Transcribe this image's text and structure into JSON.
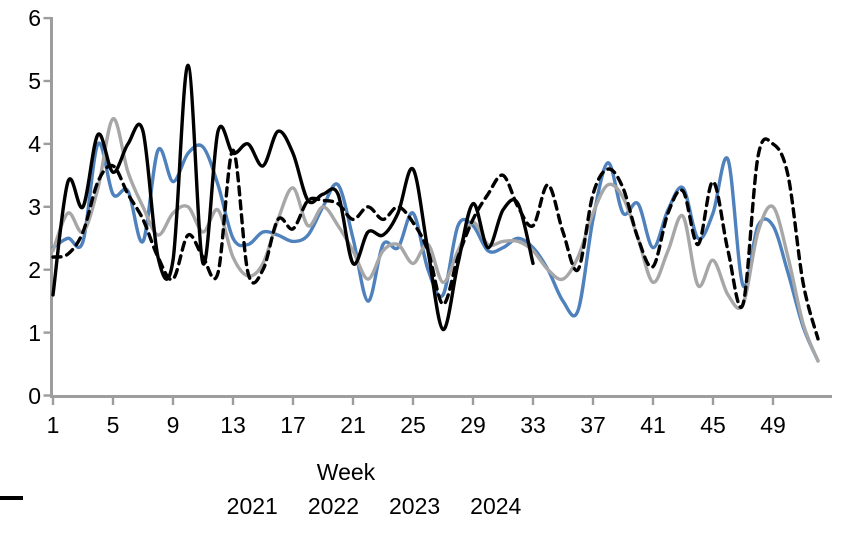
{
  "colors": {
    "axis": "#9D9D9D",
    "text": "#000000",
    "background": "#FFFFFF",
    "series_2021": "#4F81BD",
    "series_2022": "#A7A7A7",
    "series_2023": "#000000",
    "series_2024": "#000000"
  },
  "chart_data": {
    "type": "line",
    "title": "",
    "xlabel": "Week",
    "ylabel": "",
    "xlim": [
      1,
      52
    ],
    "ylim": [
      0,
      6
    ],
    "x_ticks": [
      1,
      5,
      9,
      13,
      17,
      21,
      25,
      29,
      33,
      37,
      41,
      45,
      49
    ],
    "y_ticks": [
      0,
      1,
      2,
      3,
      4,
      5,
      6
    ],
    "grid": false,
    "legend_position": "bottom",
    "series": [
      {
        "name": "2021",
        "color": "#4F81BD",
        "style": "solid",
        "start_week": 1,
        "values": [
          2.35,
          2.5,
          2.45,
          4.0,
          3.2,
          3.25,
          2.45,
          3.9,
          3.4,
          3.85,
          3.95,
          3.35,
          2.5,
          2.4,
          2.6,
          2.55,
          2.45,
          2.55,
          3.0,
          3.35,
          2.5,
          1.5,
          2.4,
          2.35,
          2.9,
          2.0,
          1.6,
          2.7,
          2.7,
          2.3,
          2.35,
          2.5,
          2.35,
          2.0,
          1.5,
          1.35,
          2.8,
          3.7,
          2.9,
          3.05,
          2.35,
          2.95,
          3.3,
          2.5,
          2.9,
          3.75,
          1.75,
          2.7,
          2.7,
          1.95,
          1.1,
          0.55
        ]
      },
      {
        "name": "2022",
        "color": "#A7A7A7",
        "style": "solid",
        "start_week": 1,
        "values": [
          2.3,
          2.9,
          2.6,
          3.3,
          4.4,
          3.55,
          3.0,
          2.55,
          2.9,
          3.0,
          2.6,
          2.95,
          2.2,
          1.9,
          2.1,
          2.8,
          3.3,
          2.7,
          3.0,
          2.7,
          2.3,
          1.85,
          2.3,
          2.4,
          2.1,
          2.4,
          1.8,
          2.3,
          2.75,
          2.4,
          2.45,
          2.45,
          2.3,
          2.0,
          1.85,
          2.2,
          2.9,
          3.35,
          3.15,
          2.5,
          1.8,
          2.3,
          2.85,
          1.75,
          2.15,
          1.6,
          1.45,
          2.6,
          3.0,
          2.2,
          1.15,
          0.55
        ]
      },
      {
        "name": "2023",
        "color": "#000000",
        "style": "dashed",
        "start_week": 1,
        "values": [
          2.2,
          2.25,
          2.6,
          3.4,
          3.65,
          3.2,
          2.8,
          2.2,
          1.85,
          2.55,
          2.2,
          1.95,
          3.9,
          1.95,
          2.0,
          2.8,
          2.65,
          3.1,
          3.1,
          3.05,
          2.8,
          3.0,
          2.8,
          3.0,
          2.75,
          2.3,
          1.45,
          2.2,
          2.8,
          3.2,
          3.5,
          3.0,
          2.7,
          3.35,
          2.6,
          2.0,
          3.2,
          3.6,
          3.3,
          2.5,
          2.05,
          2.9,
          3.25,
          2.4,
          3.4,
          2.3,
          1.45,
          3.8,
          4.0,
          3.5,
          1.8,
          0.9
        ]
      },
      {
        "name": "2024",
        "color": "#000000",
        "style": "solid",
        "start_week": 1,
        "values": [
          1.6,
          3.4,
          3.0,
          4.15,
          3.55,
          4.0,
          4.2,
          2.2,
          2.15,
          5.25,
          2.1,
          4.2,
          3.85,
          4.0,
          3.65,
          4.2,
          3.85,
          3.1,
          3.2,
          3.2,
          2.1,
          2.6,
          2.55,
          2.9,
          3.6,
          2.3,
          1.05,
          2.1,
          3.05,
          2.35,
          2.95,
          3.05,
          2.1
        ]
      }
    ]
  }
}
